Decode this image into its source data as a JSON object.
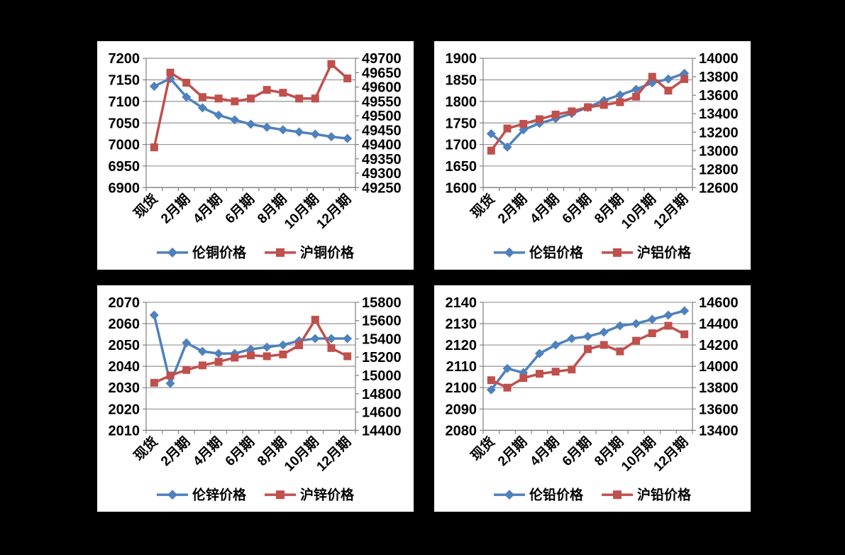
{
  "canvas": {
    "background": "#000000",
    "panel_background": "#ffffff",
    "grid_color": "#949494",
    "axis_color": "#7f7f7f",
    "text_color": "#000000",
    "series_blue": "#4F81BD",
    "series_red": "#C0504D"
  },
  "chart_data": [
    {
      "id": "copper",
      "type": "line",
      "title": "",
      "x_axis": {
        "num_points": 13,
        "visible_labels": [
          "现货",
          "2月期",
          "4月期",
          "6月期",
          "8月期",
          "10月期",
          "12月期"
        ],
        "label_every": 2
      },
      "left_axis": {
        "min": 6900,
        "max": 7200,
        "step": 50
      },
      "right_axis": {
        "min": 49250,
        "max": 49700,
        "step": 50
      },
      "grid": true,
      "legend_position": "bottom",
      "series": [
        {
          "name": "伦铜价格",
          "axis": "left",
          "color": "#4F81BD",
          "marker": "diamond",
          "values": [
            7135,
            7153,
            7110,
            7085,
            7068,
            7057,
            7047,
            7040,
            7034,
            7029,
            7024,
            7018,
            7014
          ]
        },
        {
          "name": "沪铜价格",
          "axis": "right",
          "color": "#C0504D",
          "marker": "square",
          "values": [
            49390,
            49650,
            49615,
            49565,
            49560,
            49550,
            49560,
            49590,
            49580,
            49560,
            49560,
            49680,
            49630
          ]
        }
      ]
    },
    {
      "id": "aluminum",
      "type": "line",
      "title": "",
      "x_axis": {
        "num_points": 13,
        "visible_labels": [
          "现货",
          "2月期",
          "4月期",
          "6月期",
          "8月期",
          "10月期",
          "12月期"
        ],
        "label_every": 2
      },
      "left_axis": {
        "min": 1600,
        "max": 1900,
        "step": 50
      },
      "right_axis": {
        "min": 12600,
        "max": 14000,
        "step": 200
      },
      "grid": true,
      "legend_position": "bottom",
      "series": [
        {
          "name": "伦铝价格",
          "axis": "left",
          "color": "#4F81BD",
          "marker": "diamond",
          "values": [
            1725,
            1694,
            1734,
            1749,
            1760,
            1772,
            1786,
            1802,
            1815,
            1828,
            1843,
            1852,
            1865
          ]
        },
        {
          "name": "沪铝价格",
          "axis": "right",
          "color": "#C0504D",
          "marker": "square",
          "values": [
            13000,
            13240,
            13290,
            13340,
            13390,
            13425,
            13470,
            13495,
            13525,
            13585,
            13800,
            13650,
            13775
          ]
        }
      ]
    },
    {
      "id": "zinc",
      "type": "line",
      "title": "",
      "x_axis": {
        "num_points": 13,
        "visible_labels": [
          "现货",
          "2月期",
          "4月期",
          "6月期",
          "8月期",
          "10月期",
          "12月期"
        ],
        "label_every": 2
      },
      "left_axis": {
        "min": 2010,
        "max": 2070,
        "step": 10
      },
      "right_axis": {
        "min": 14400,
        "max": 15800,
        "step": 200
      },
      "grid": true,
      "legend_position": "bottom",
      "series": [
        {
          "name": "伦锌价格",
          "axis": "left",
          "color": "#4F81BD",
          "marker": "diamond",
          "values": [
            2064,
            2032,
            2051,
            2047,
            2046,
            2046,
            2048,
            2049,
            2050,
            2052,
            2053,
            2053,
            2053
          ]
        },
        {
          "name": "沪锌价格",
          "axis": "right",
          "color": "#C0504D",
          "marker": "square",
          "values": [
            14920,
            15000,
            15060,
            15110,
            15150,
            15195,
            15220,
            15210,
            15230,
            15330,
            15610,
            15300,
            15210
          ]
        }
      ]
    },
    {
      "id": "lead",
      "type": "line",
      "title": "",
      "x_axis": {
        "num_points": 13,
        "visible_labels": [
          "现货",
          "2月期",
          "4月期",
          "6月期",
          "8月期",
          "10月期",
          "12月期"
        ],
        "label_every": 2
      },
      "left_axis": {
        "min": 2080,
        "max": 2140,
        "step": 10
      },
      "right_axis": {
        "min": 13400,
        "max": 14600,
        "step": 200
      },
      "grid": true,
      "legend_position": "bottom",
      "series": [
        {
          "name": "伦铅价格",
          "axis": "left",
          "color": "#4F81BD",
          "marker": "diamond",
          "values": [
            2099,
            2109,
            2107,
            2116,
            2120,
            2123,
            2124,
            2126,
            2129,
            2130,
            2132,
            2134,
            2136
          ]
        },
        {
          "name": "沪铅价格",
          "axis": "right",
          "color": "#C0504D",
          "marker": "square",
          "values": [
            13870,
            13800,
            13890,
            13930,
            13950,
            13970,
            14160,
            14200,
            14140,
            14240,
            14310,
            14380,
            14300
          ]
        }
      ]
    }
  ]
}
